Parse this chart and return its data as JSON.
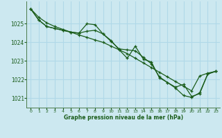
{
  "title": "Graphe pression niveau de la mer (hPa)",
  "bg_color": "#cce8f0",
  "grid_color": "#b0d8e8",
  "line_color": "#1a5c1a",
  "xlim": [
    -0.5,
    23.5
  ],
  "ylim": [
    1020.5,
    1026.2
  ],
  "yticks": [
    1021,
    1022,
    1023,
    1024,
    1025
  ],
  "xticks": [
    0,
    1,
    2,
    3,
    4,
    5,
    6,
    7,
    8,
    9,
    10,
    11,
    12,
    13,
    14,
    15,
    16,
    17,
    18,
    19,
    20,
    21,
    22,
    23
  ],
  "series1_smooth": {
    "x": [
      0,
      1,
      2,
      3,
      4,
      5,
      6,
      7,
      8,
      9,
      10,
      11,
      12,
      13,
      14,
      15,
      16,
      17,
      18,
      19,
      20,
      21,
      22,
      23
    ],
    "y": [
      1025.8,
      1025.35,
      1025.05,
      1024.85,
      1024.7,
      1024.55,
      1024.4,
      1024.27,
      1024.13,
      1024.0,
      1023.8,
      1023.6,
      1023.4,
      1023.15,
      1022.9,
      1022.65,
      1022.4,
      1022.15,
      1021.9,
      1021.65,
      1021.4,
      1022.2,
      1022.35,
      1022.45
    ]
  },
  "series2_jagged": {
    "x": [
      0,
      1,
      2,
      3,
      4,
      5,
      6,
      7,
      8,
      9,
      10,
      11,
      12,
      13,
      14,
      15,
      16,
      17,
      18,
      19,
      20,
      21,
      22,
      23
    ],
    "y": [
      1025.8,
      1025.2,
      1024.85,
      1024.75,
      1024.65,
      1024.55,
      1024.5,
      1025.0,
      1024.95,
      1024.45,
      1024.1,
      1023.6,
      1023.15,
      1023.8,
      1023.1,
      1022.95,
      1022.1,
      1021.85,
      1021.55,
      1021.15,
      1021.05,
      1021.3,
      1022.3,
      1022.45
    ]
  },
  "series3_mid": {
    "x": [
      0,
      1,
      2,
      3,
      4,
      5,
      6,
      7,
      8,
      9,
      10,
      11,
      12,
      13,
      14,
      15,
      16,
      17,
      18,
      19,
      20,
      21,
      22,
      23
    ],
    "y": [
      1025.8,
      1025.2,
      1024.85,
      1024.75,
      1024.65,
      1024.55,
      1024.5,
      1024.6,
      1024.65,
      1024.45,
      1024.05,
      1023.65,
      1023.6,
      1023.55,
      1023.2,
      1022.85,
      1022.15,
      1021.85,
      1021.6,
      1021.75,
      1021.1,
      1021.25,
      1022.3,
      1022.45
    ]
  }
}
